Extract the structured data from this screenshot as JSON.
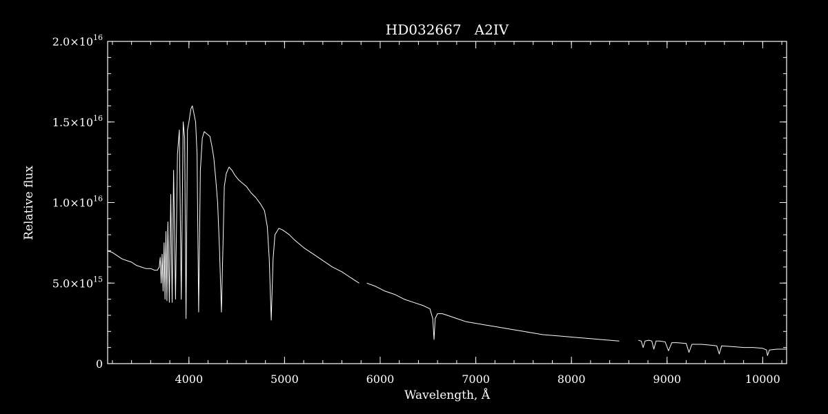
{
  "chart_data": {
    "type": "line",
    "title": "HD032667   A2IV",
    "xlabel": "Wavelength, Å",
    "ylabel": "Relative flux",
    "xlim": [
      3150,
      10250
    ],
    "ylim": [
      0,
      2e+16
    ],
    "x_ticks": [
      {
        "value": 4000,
        "label": "4000"
      },
      {
        "value": 5000,
        "label": "5000"
      },
      {
        "value": 6000,
        "label": "6000"
      },
      {
        "value": 7000,
        "label": "7000"
      },
      {
        "value": 8000,
        "label": "8000"
      },
      {
        "value": 9000,
        "label": "9000"
      },
      {
        "value": 10000,
        "label": "10000"
      }
    ],
    "x_minor_step": 200,
    "y_ticks": [
      {
        "value": 0,
        "mant": "0",
        "exp": ""
      },
      {
        "value": 5000000000000000.0,
        "mant": "5.0×10",
        "exp": "15"
      },
      {
        "value": 1e+16,
        "mant": "1.0×10",
        "exp": "16"
      },
      {
        "value": 1.5e+16,
        "mant": "1.5×10",
        "exp": "16"
      },
      {
        "value": 2e+16,
        "mant": "2.0×10",
        "exp": "16"
      }
    ],
    "y_minor_step": 1000000000000000.0,
    "grid": false,
    "legend": "none",
    "colors": {
      "background": "#000000",
      "foreground": "#ffffff"
    },
    "series": [
      {
        "segments": [
          [
            [
              3150,
              7000000000000000.0
            ],
            [
              3200,
              6900000000000000.0
            ],
            [
              3250,
              6700000000000000.0
            ],
            [
              3300,
              6500000000000000.0
            ],
            [
              3350,
              6400000000000000.0
            ],
            [
              3400,
              6300000000000000.0
            ],
            [
              3450,
              6100000000000000.0
            ],
            [
              3500,
              6000000000000000.0
            ],
            [
              3550,
              5900000000000000.0
            ],
            [
              3600,
              5900000000000000.0
            ],
            [
              3640,
              5800000000000000.0
            ],
            [
              3670,
              5800000000000000.0
            ],
            [
              3690,
              6000000000000000.0
            ],
            [
              3700,
              6600000000000000.0
            ],
            [
              3710,
              5000000000000000.0
            ],
            [
              3720,
              6800000000000000.0
            ],
            [
              3730,
              4500000000000000.0
            ],
            [
              3740,
              7500000000000000.0
            ],
            [
              3750,
              4000000000000000.0
            ],
            [
              3760,
              8200000000000000.0
            ],
            [
              3770,
              3900000000000000.0
            ],
            [
              3780,
              8800000000000000.0
            ],
            [
              3795,
              3800000000000000.0
            ],
            [
              3810,
              1.05e+16
            ],
            [
              3825,
              3800000000000000.0
            ],
            [
              3840,
              1.2e+16
            ],
            [
              3860,
              4000000000000000.0
            ],
            [
              3880,
              1.3e+16
            ],
            [
              3900,
              1.45e+16
            ],
            [
              3920,
              4000000000000000.0
            ],
            [
              3940,
              1.5e+16
            ],
            [
              3955,
              1.4e+16
            ],
            [
              3970,
              2800000000000000.0
            ],
            [
              3985,
              1.45e+16
            ],
            [
              4000,
              1.5e+16
            ],
            [
              4020,
              1.58e+16
            ],
            [
              4035,
              1.6e+16
            ],
            [
              4050,
              1.56e+16
            ],
            [
              4070,
              1.5e+16
            ],
            [
              4085,
              1.3e+16
            ],
            [
              4102,
              3200000000000000.0
            ],
            [
              4120,
              1.2e+16
            ],
            [
              4140,
              1.4e+16
            ],
            [
              4160,
              1.44e+16
            ],
            [
              4180,
              1.43e+16
            ],
            [
              4200,
              1.42e+16
            ],
            [
              4220,
              1.41e+16
            ],
            [
              4240,
              1.35e+16
            ],
            [
              4260,
              1.28e+16
            ],
            [
              4280,
              1.15e+16
            ],
            [
              4300,
              1e+16
            ],
            [
              4320,
              7000000000000000.0
            ],
            [
              4340,
              3200000000000000.0
            ],
            [
              4355,
              7000000000000000.0
            ],
            [
              4370,
              1.1e+16
            ],
            [
              4390,
              1.18e+16
            ],
            [
              4420,
              1.22e+16
            ],
            [
              4450,
              1.2e+16
            ],
            [
              4480,
              1.17e+16
            ],
            [
              4520,
              1.14e+16
            ],
            [
              4560,
              1.12e+16
            ],
            [
              4600,
              1.1e+16
            ],
            [
              4650,
              1.06e+16
            ],
            [
              4700,
              1.03e+16
            ],
            [
              4750,
              9900000000000000.0
            ],
            [
              4790,
              9500000000000000.0
            ],
            [
              4820,
              8500000000000000.0
            ],
            [
              4840,
              6500000000000000.0
            ],
            [
              4861,
              2700000000000000.0
            ],
            [
              4880,
              6500000000000000.0
            ],
            [
              4900,
              8000000000000000.0
            ],
            [
              4940,
              8400000000000000.0
            ],
            [
              4980,
              8300000000000000.0
            ],
            [
              5050,
              8000000000000000.0
            ],
            [
              5100,
              7700000000000000.0
            ],
            [
              5200,
              7200000000000000.0
            ],
            [
              5300,
              6800000000000000.0
            ],
            [
              5400,
              6400000000000000.0
            ],
            [
              5500,
              6000000000000000.0
            ],
            [
              5600,
              5700000000000000.0
            ],
            [
              5700,
              5300000000000000.0
            ],
            [
              5780,
              5000000000000000.0
            ]
          ],
          [
            [
              5860,
              5000000000000000.0
            ],
            [
              5950,
              4800000000000000.0
            ],
            [
              6050,
              4500000000000000.0
            ],
            [
              6150,
              4300000000000000.0
            ],
            [
              6250,
              4000000000000000.0
            ],
            [
              6350,
              3800000000000000.0
            ],
            [
              6450,
              3600000000000000.0
            ],
            [
              6520,
              3400000000000000.0
            ],
            [
              6550,
              2800000000000000.0
            ],
            [
              6563,
              1500000000000000.0
            ],
            [
              6575,
              2800000000000000.0
            ],
            [
              6600,
              3100000000000000.0
            ],
            [
              6650,
              3100000000000000.0
            ],
            [
              6700,
              3000000000000000.0
            ],
            [
              6800,
              2800000000000000.0
            ],
            [
              6900,
              2600000000000000.0
            ],
            [
              7000,
              2500000000000000.0
            ],
            [
              7100,
              2400000000000000.0
            ],
            [
              7200,
              2300000000000000.0
            ],
            [
              7300,
              2200000000000000.0
            ],
            [
              7400,
              2100000000000000.0
            ],
            [
              7500,
              2000000000000000.0
            ],
            [
              7600,
              1900000000000000.0
            ],
            [
              7700,
              1800000000000000.0
            ],
            [
              7800,
              1750000000000000.0
            ],
            [
              7900,
              1700000000000000.0
            ],
            [
              8000,
              1650000000000000.0
            ],
            [
              8100,
              1600000000000000.0
            ],
            [
              8200,
              1550000000000000.0
            ],
            [
              8300,
              1500000000000000.0
            ],
            [
              8400,
              1450000000000000.0
            ],
            [
              8500,
              1400000000000000.0
            ]
          ],
          [
            [
              8700,
              1450000000000000.0
            ],
            [
              8730,
              1400000000000000.0
            ],
            [
              8750,
              1000000000000000.0
            ],
            [
              8770,
              1400000000000000.0
            ],
            [
              8810,
              1450000000000000.0
            ],
            [
              8840,
              1400000000000000.0
            ],
            [
              8862,
              900000000000000.0
            ],
            [
              8885,
              1400000000000000.0
            ],
            [
              8920,
              1400000000000000.0
            ],
            [
              8980,
              1350000000000000.0
            ],
            [
              9015,
              800000000000000.0
            ],
            [
              9050,
              1300000000000000.0
            ],
            [
              9100,
              1300000000000000.0
            ],
            [
              9200,
              1250000000000000.0
            ],
            [
              9229,
              700000000000000.0
            ],
            [
              9260,
              1200000000000000.0
            ],
            [
              9350,
              1200000000000000.0
            ],
            [
              9450,
              1150000000000000.0
            ],
            [
              9520,
              1100000000000000.0
            ],
            [
              9546,
              600000000000000.0
            ],
            [
              9570,
              1100000000000000.0
            ],
            [
              9700,
              1050000000000000.0
            ],
            [
              9800,
              1000000000000000.0
            ],
            [
              9900,
              1000000000000000.0
            ],
            [
              10000,
              950000000000000.0
            ],
            [
              10040,
              850000000000000.0
            ],
            [
              10050,
              500000000000000.0
            ],
            [
              10070,
              850000000000000.0
            ],
            [
              10150,
              900000000000000.0
            ],
            [
              10250,
              900000000000000.0
            ]
          ]
        ]
      }
    ]
  }
}
